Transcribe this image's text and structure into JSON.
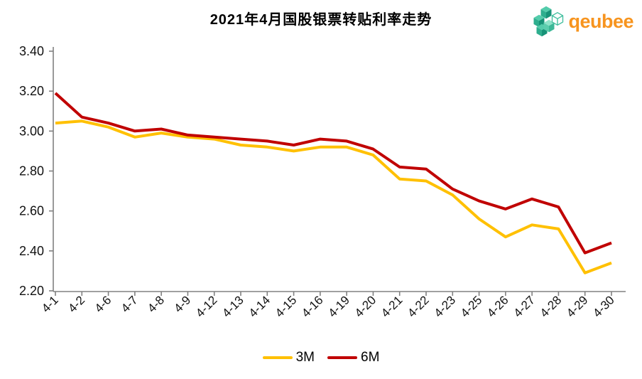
{
  "header": {
    "title": "2021年4月国股银票转贴利率走势"
  },
  "logo": {
    "text": "qeubee",
    "text_color": "#F7941E",
    "icon": "qeubee-cubes-icon",
    "icon_palette": [
      "#53CCAB",
      "#2EAE8E",
      "#179277",
      "#8FE3C9",
      "#45C0A0"
    ]
  },
  "chart_data": {
    "type": "line",
    "title": "2021年4月国股银票转贴利率走势",
    "categories": [
      "4-1",
      "4-2",
      "4-6",
      "4-7",
      "4-8",
      "4-9",
      "4-12",
      "4-13",
      "4-14",
      "4-15",
      "4-16",
      "4-19",
      "4-20",
      "4-21",
      "4-22",
      "4-23",
      "4-25",
      "4-26",
      "4-27",
      "4-28",
      "4-29",
      "4-30"
    ],
    "series": [
      {
        "name": "3M",
        "color": "#FFC000",
        "values": [
          3.04,
          3.05,
          3.02,
          2.97,
          2.99,
          2.97,
          2.96,
          2.93,
          2.92,
          2.9,
          2.92,
          2.92,
          2.88,
          2.76,
          2.75,
          2.68,
          2.56,
          2.47,
          2.53,
          2.51,
          2.29,
          2.34
        ]
      },
      {
        "name": "6M",
        "color": "#C00000",
        "values": [
          3.19,
          3.07,
          3.04,
          3.0,
          3.01,
          2.98,
          2.97,
          2.96,
          2.95,
          2.93,
          2.96,
          2.95,
          2.91,
          2.82,
          2.81,
          2.71,
          2.65,
          2.61,
          2.66,
          2.62,
          2.39,
          2.44
        ]
      }
    ],
    "ylim": [
      2.2,
      3.4
    ],
    "yticks": [
      2.2,
      2.4,
      2.6,
      2.8,
      3.0,
      3.2,
      3.4
    ],
    "ytick_labels": [
      "2.20",
      "2.40",
      "2.60",
      "2.80",
      "3.00",
      "3.20",
      "3.40"
    ],
    "xlabel": "",
    "ylabel": "",
    "grid": false,
    "legend_position": "bottom",
    "x_label_rotation_deg": 45,
    "axis_color": "#808080",
    "tick_label_color": "#111111",
    "line_width": 4
  }
}
